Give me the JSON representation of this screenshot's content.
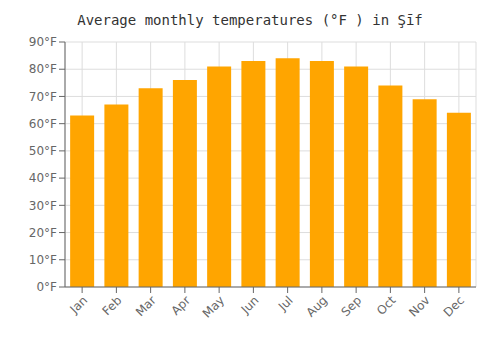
{
  "chart_data": {
    "type": "bar",
    "title": "Average monthly temperatures (°F ) in Şīf",
    "categories": [
      "Jan",
      "Feb",
      "Mar",
      "Apr",
      "May",
      "Jun",
      "Jul",
      "Aug",
      "Sep",
      "Oct",
      "Nov",
      "Dec"
    ],
    "values": [
      63,
      67,
      73,
      76,
      81,
      83,
      84,
      83,
      81,
      74,
      69,
      64
    ],
    "color": "#FFA500",
    "ylim": [
      0,
      90
    ],
    "yticks": [
      {
        "value": 0,
        "label": "0°F"
      },
      {
        "value": 10,
        "label": "10°F"
      },
      {
        "value": 20,
        "label": "20°F"
      },
      {
        "value": 30,
        "label": "30°F"
      },
      {
        "value": 40,
        "label": "40°F"
      },
      {
        "value": 50,
        "label": "50°F"
      },
      {
        "value": 60,
        "label": "60°F"
      },
      {
        "value": 70,
        "label": "70°F"
      },
      {
        "value": 80,
        "label": "80°F"
      },
      {
        "value": 90,
        "label": "90°F"
      }
    ],
    "grid": true
  }
}
